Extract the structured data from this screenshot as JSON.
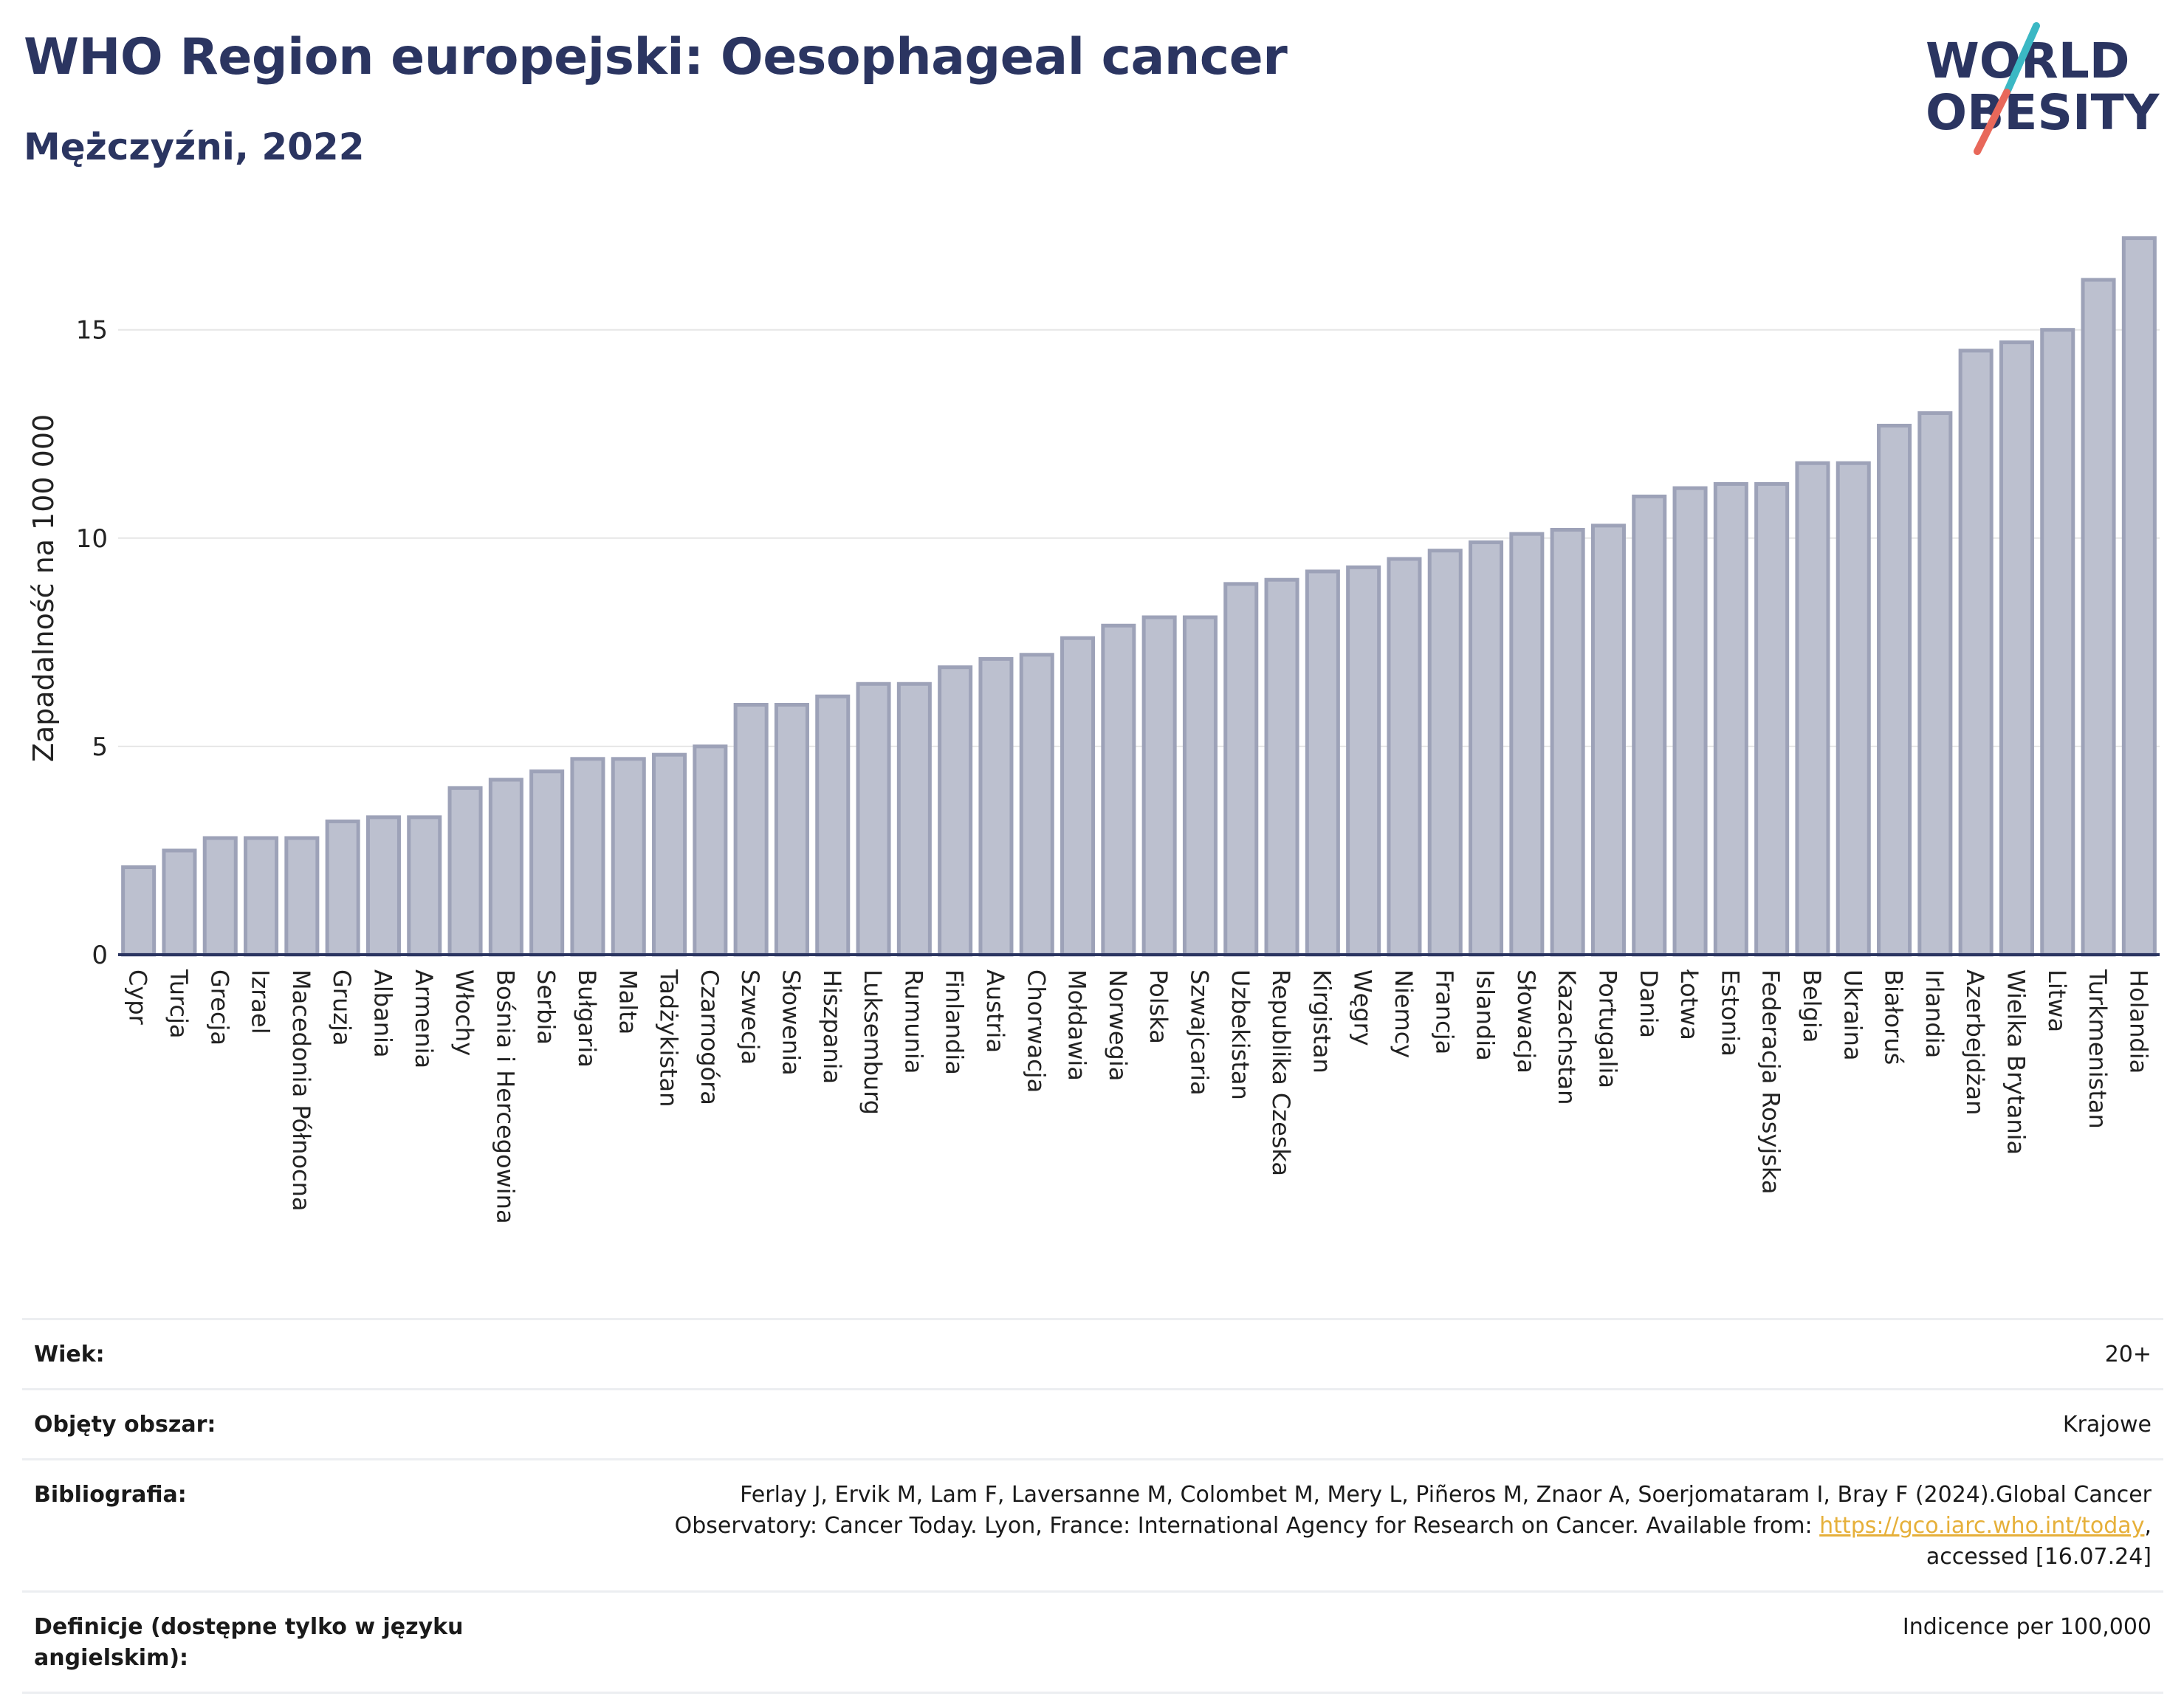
{
  "title": "WHO Region europejski: Oesophageal cancer",
  "subtitle": "Mężczyźni, 2022",
  "logo": {
    "line1": "WORLD",
    "line2": "OBESITY",
    "colors": {
      "text": "#2b3561",
      "slash_teal": "#3bb8c4",
      "slash_red": "#e8685a"
    }
  },
  "colors": {
    "bar_fill": "#bcc0cf",
    "bar_stroke": "#9da2b8",
    "axis": "#2b3561",
    "grid": "#e6e6e6",
    "title": "#2b3561",
    "link": "#e6b03a"
  },
  "chart_data": {
    "type": "bar",
    "ylabel": "Zapadalność na 100 000",
    "ylim": [
      0,
      17.6
    ],
    "yticks": [
      0,
      5,
      10,
      15
    ],
    "grid": true,
    "categories": [
      "Cypr",
      "Turcja",
      "Grecja",
      "Izrael",
      "Macedonia Północna",
      "Gruzja",
      "Albania",
      "Armenia",
      "Włochy",
      "Bośnia i Hercegowina",
      "Serbia",
      "Bułgaria",
      "Malta",
      "Tadżykistan",
      "Czarnogóra",
      "Szwecja",
      "Słowenia",
      "Hiszpania",
      "Luksemburg",
      "Rumunia",
      "Finlandia",
      "Austria",
      "Chorwacja",
      "Mołdawia",
      "Norwegia",
      "Polska",
      "Szwajcaria",
      "Uzbekistan",
      "Republika Czeska",
      "Kirgistan",
      "Węgry",
      "Niemcy",
      "Francja",
      "Islandia",
      "Słowacja",
      "Kazachstan",
      "Portugalia",
      "Dania",
      "Łotwa",
      "Estonia",
      "Federacja Rosyjska",
      "Belgia",
      "Ukraina",
      "Białoruś",
      "Irlandia",
      "Azerbejdżan",
      "Wielka Brytania",
      "Litwa",
      "Turkmenistan",
      "Holandia"
    ],
    "values": [
      2.1,
      2.5,
      2.8,
      2.8,
      2.8,
      3.2,
      3.3,
      3.3,
      4.0,
      4.2,
      4.4,
      4.7,
      4.7,
      4.8,
      5.0,
      6.0,
      6.0,
      6.2,
      6.5,
      6.5,
      6.9,
      7.1,
      7.2,
      7.6,
      7.9,
      8.1,
      8.1,
      8.9,
      9.0,
      9.2,
      9.3,
      9.5,
      9.7,
      9.9,
      10.1,
      10.2,
      10.3,
      11.0,
      11.2,
      11.3,
      11.3,
      11.8,
      11.8,
      12.7,
      13.0,
      14.5,
      14.7,
      15.0,
      16.2,
      17.2
    ]
  },
  "meta": {
    "age_label": "Wiek:",
    "age_value": "20+",
    "coverage_label": "Objęty obszar:",
    "coverage_value": "Krajowe",
    "biblio_label": "Bibliografia:",
    "biblio_line1": "Ferlay J, Ervik M, Lam F, Laversanne M, Colombet M, Mery L, Piñeros M, Znaor A, Soerjomataram I, Bray F (2024).Global Cancer",
    "biblio_line2_pre": "Observatory: Cancer Today. Lyon, France: International Agency for Research on Cancer. Available from: ",
    "biblio_link": "https://gco.iarc.who.int/today",
    "biblio_line2_post": ",",
    "biblio_line3": "accessed [16.07.24]",
    "definitions_label": "Definicje (dostępne tylko w języku angielskim):",
    "definitions_value": "Indicence per 100,000"
  }
}
